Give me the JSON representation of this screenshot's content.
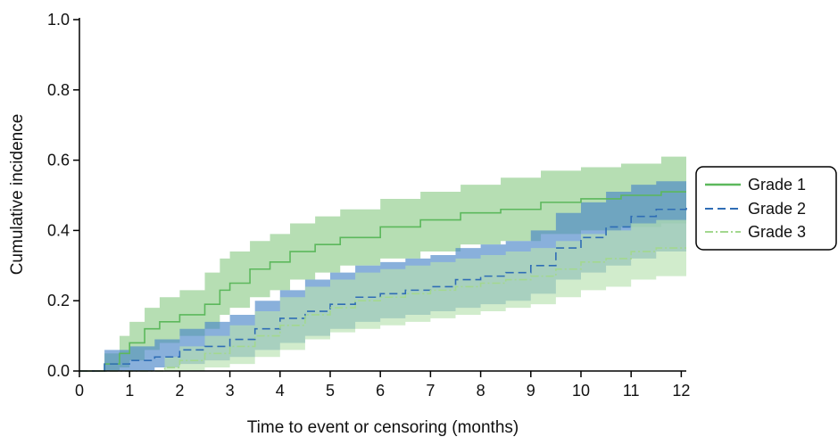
{
  "chart_data": {
    "type": "line",
    "title": "",
    "xlabel": "Time to event or censoring (months)",
    "ylabel": "Cumulative incidence",
    "xlim": [
      0,
      12.1
    ],
    "ylim": [
      0,
      1.0
    ],
    "x_ticks": [
      "0",
      "1",
      "2",
      "3",
      "4",
      "5",
      "6",
      "7",
      "8",
      "9",
      "10",
      "11",
      "12"
    ],
    "y_ticks": [
      "0.0",
      "0.2",
      "0.4",
      "0.6",
      "0.8",
      "1.0"
    ],
    "grid": false,
    "legend_position": "right",
    "series": [
      {
        "name": "Grade 1",
        "color": "#5cb85c",
        "band_color": "#8fcc8a",
        "line_style": "solid",
        "points": [
          {
            "x": 0,
            "y": 0.0,
            "lo": 0.0,
            "hi": 0.0
          },
          {
            "x": 0.4,
            "y": 0.0,
            "lo": 0.0,
            "hi": 0.0
          },
          {
            "x": 0.5,
            "y": 0.02,
            "lo": 0.0,
            "hi": 0.05
          },
          {
            "x": 0.8,
            "y": 0.05,
            "lo": 0.01,
            "hi": 0.1
          },
          {
            "x": 1.0,
            "y": 0.08,
            "lo": 0.03,
            "hi": 0.14
          },
          {
            "x": 1.3,
            "y": 0.12,
            "lo": 0.06,
            "hi": 0.18
          },
          {
            "x": 1.6,
            "y": 0.14,
            "lo": 0.08,
            "hi": 0.21
          },
          {
            "x": 2.0,
            "y": 0.16,
            "lo": 0.1,
            "hi": 0.23
          },
          {
            "x": 2.5,
            "y": 0.19,
            "lo": 0.12,
            "hi": 0.28
          },
          {
            "x": 2.8,
            "y": 0.23,
            "lo": 0.16,
            "hi": 0.32
          },
          {
            "x": 3.0,
            "y": 0.25,
            "lo": 0.18,
            "hi": 0.34
          },
          {
            "x": 3.4,
            "y": 0.29,
            "lo": 0.21,
            "hi": 0.37
          },
          {
            "x": 3.8,
            "y": 0.31,
            "lo": 0.23,
            "hi": 0.39
          },
          {
            "x": 4.2,
            "y": 0.34,
            "lo": 0.26,
            "hi": 0.42
          },
          {
            "x": 4.7,
            "y": 0.36,
            "lo": 0.28,
            "hi": 0.44
          },
          {
            "x": 5.2,
            "y": 0.38,
            "lo": 0.3,
            "hi": 0.46
          },
          {
            "x": 6.0,
            "y": 0.41,
            "lo": 0.32,
            "hi": 0.49
          },
          {
            "x": 6.8,
            "y": 0.43,
            "lo": 0.34,
            "hi": 0.51
          },
          {
            "x": 7.6,
            "y": 0.45,
            "lo": 0.36,
            "hi": 0.53
          },
          {
            "x": 8.4,
            "y": 0.46,
            "lo": 0.37,
            "hi": 0.55
          },
          {
            "x": 9.2,
            "y": 0.48,
            "lo": 0.39,
            "hi": 0.57
          },
          {
            "x": 10.0,
            "y": 0.49,
            "lo": 0.4,
            "hi": 0.58
          },
          {
            "x": 10.8,
            "y": 0.5,
            "lo": 0.41,
            "hi": 0.59
          },
          {
            "x": 11.6,
            "y": 0.51,
            "lo": 0.42,
            "hi": 0.61
          },
          {
            "x": 12.1,
            "y": 0.51,
            "lo": 0.42,
            "hi": 0.61
          }
        ]
      },
      {
        "name": "Grade 2",
        "color": "#2f6db5",
        "band_color": "#4a86c8",
        "line_style": "dashed",
        "points": [
          {
            "x": 0,
            "y": 0.0,
            "lo": 0.0,
            "hi": 0.0
          },
          {
            "x": 0.4,
            "y": 0.0,
            "lo": 0.0,
            "hi": 0.0
          },
          {
            "x": 0.5,
            "y": 0.02,
            "lo": 0.0,
            "hi": 0.06
          },
          {
            "x": 1.0,
            "y": 0.03,
            "lo": 0.0,
            "hi": 0.07
          },
          {
            "x": 1.5,
            "y": 0.04,
            "lo": 0.01,
            "hi": 0.09
          },
          {
            "x": 2.0,
            "y": 0.06,
            "lo": 0.02,
            "hi": 0.12
          },
          {
            "x": 2.5,
            "y": 0.07,
            "lo": 0.03,
            "hi": 0.14
          },
          {
            "x": 3.0,
            "y": 0.09,
            "lo": 0.04,
            "hi": 0.16
          },
          {
            "x": 3.5,
            "y": 0.12,
            "lo": 0.06,
            "hi": 0.2
          },
          {
            "x": 4.0,
            "y": 0.15,
            "lo": 0.08,
            "hi": 0.23
          },
          {
            "x": 4.5,
            "y": 0.17,
            "lo": 0.1,
            "hi": 0.26
          },
          {
            "x": 5.0,
            "y": 0.19,
            "lo": 0.12,
            "hi": 0.28
          },
          {
            "x": 5.5,
            "y": 0.21,
            "lo": 0.14,
            "hi": 0.3
          },
          {
            "x": 6.0,
            "y": 0.22,
            "lo": 0.15,
            "hi": 0.31
          },
          {
            "x": 6.5,
            "y": 0.23,
            "lo": 0.16,
            "hi": 0.32
          },
          {
            "x": 7.0,
            "y": 0.24,
            "lo": 0.17,
            "hi": 0.33
          },
          {
            "x": 7.5,
            "y": 0.26,
            "lo": 0.18,
            "hi": 0.35
          },
          {
            "x": 8.0,
            "y": 0.27,
            "lo": 0.19,
            "hi": 0.36
          },
          {
            "x": 8.5,
            "y": 0.28,
            "lo": 0.2,
            "hi": 0.37
          },
          {
            "x": 9.0,
            "y": 0.3,
            "lo": 0.22,
            "hi": 0.4
          },
          {
            "x": 9.5,
            "y": 0.35,
            "lo": 0.26,
            "hi": 0.45
          },
          {
            "x": 10.0,
            "y": 0.38,
            "lo": 0.28,
            "hi": 0.48
          },
          {
            "x": 10.5,
            "y": 0.41,
            "lo": 0.3,
            "hi": 0.51
          },
          {
            "x": 11.0,
            "y": 0.44,
            "lo": 0.32,
            "hi": 0.53
          },
          {
            "x": 11.5,
            "y": 0.46,
            "lo": 0.34,
            "hi": 0.54
          },
          {
            "x": 12.1,
            "y": 0.47,
            "lo": 0.35,
            "hi": 0.54
          }
        ]
      },
      {
        "name": "Grade 3",
        "color": "#a3d88f",
        "band_color": "#b9e2b1",
        "line_style": "dashdot",
        "points": [
          {
            "x": 0,
            "y": 0.0,
            "lo": 0.0,
            "hi": 0.0
          },
          {
            "x": 1.4,
            "y": 0.0,
            "lo": 0.0,
            "hi": 0.0
          },
          {
            "x": 1.7,
            "y": 0.01,
            "lo": 0.0,
            "hi": 0.04
          },
          {
            "x": 2.0,
            "y": 0.03,
            "lo": 0.0,
            "hi": 0.07
          },
          {
            "x": 2.5,
            "y": 0.05,
            "lo": 0.01,
            "hi": 0.1
          },
          {
            "x": 3.0,
            "y": 0.07,
            "lo": 0.02,
            "hi": 0.13
          },
          {
            "x": 3.5,
            "y": 0.1,
            "lo": 0.04,
            "hi": 0.17
          },
          {
            "x": 4.0,
            "y": 0.13,
            "lo": 0.06,
            "hi": 0.21
          },
          {
            "x": 4.5,
            "y": 0.16,
            "lo": 0.09,
            "hi": 0.24
          },
          {
            "x": 5.0,
            "y": 0.18,
            "lo": 0.11,
            "hi": 0.26
          },
          {
            "x": 5.5,
            "y": 0.2,
            "lo": 0.12,
            "hi": 0.28
          },
          {
            "x": 6.0,
            "y": 0.21,
            "lo": 0.13,
            "hi": 0.29
          },
          {
            "x": 6.5,
            "y": 0.22,
            "lo": 0.14,
            "hi": 0.3
          },
          {
            "x": 7.0,
            "y": 0.23,
            "lo": 0.15,
            "hi": 0.31
          },
          {
            "x": 7.5,
            "y": 0.24,
            "lo": 0.16,
            "hi": 0.32
          },
          {
            "x": 8.0,
            "y": 0.25,
            "lo": 0.17,
            "hi": 0.33
          },
          {
            "x": 8.5,
            "y": 0.26,
            "lo": 0.18,
            "hi": 0.34
          },
          {
            "x": 9.0,
            "y": 0.27,
            "lo": 0.19,
            "hi": 0.35
          },
          {
            "x": 9.5,
            "y": 0.29,
            "lo": 0.21,
            "hi": 0.37
          },
          {
            "x": 10.0,
            "y": 0.31,
            "lo": 0.23,
            "hi": 0.39
          },
          {
            "x": 10.5,
            "y": 0.32,
            "lo": 0.24,
            "hi": 0.4
          },
          {
            "x": 11.0,
            "y": 0.34,
            "lo": 0.26,
            "hi": 0.42
          },
          {
            "x": 11.5,
            "y": 0.35,
            "lo": 0.27,
            "hi": 0.43
          },
          {
            "x": 12.1,
            "y": 0.35,
            "lo": 0.27,
            "hi": 0.43
          }
        ]
      }
    ]
  }
}
